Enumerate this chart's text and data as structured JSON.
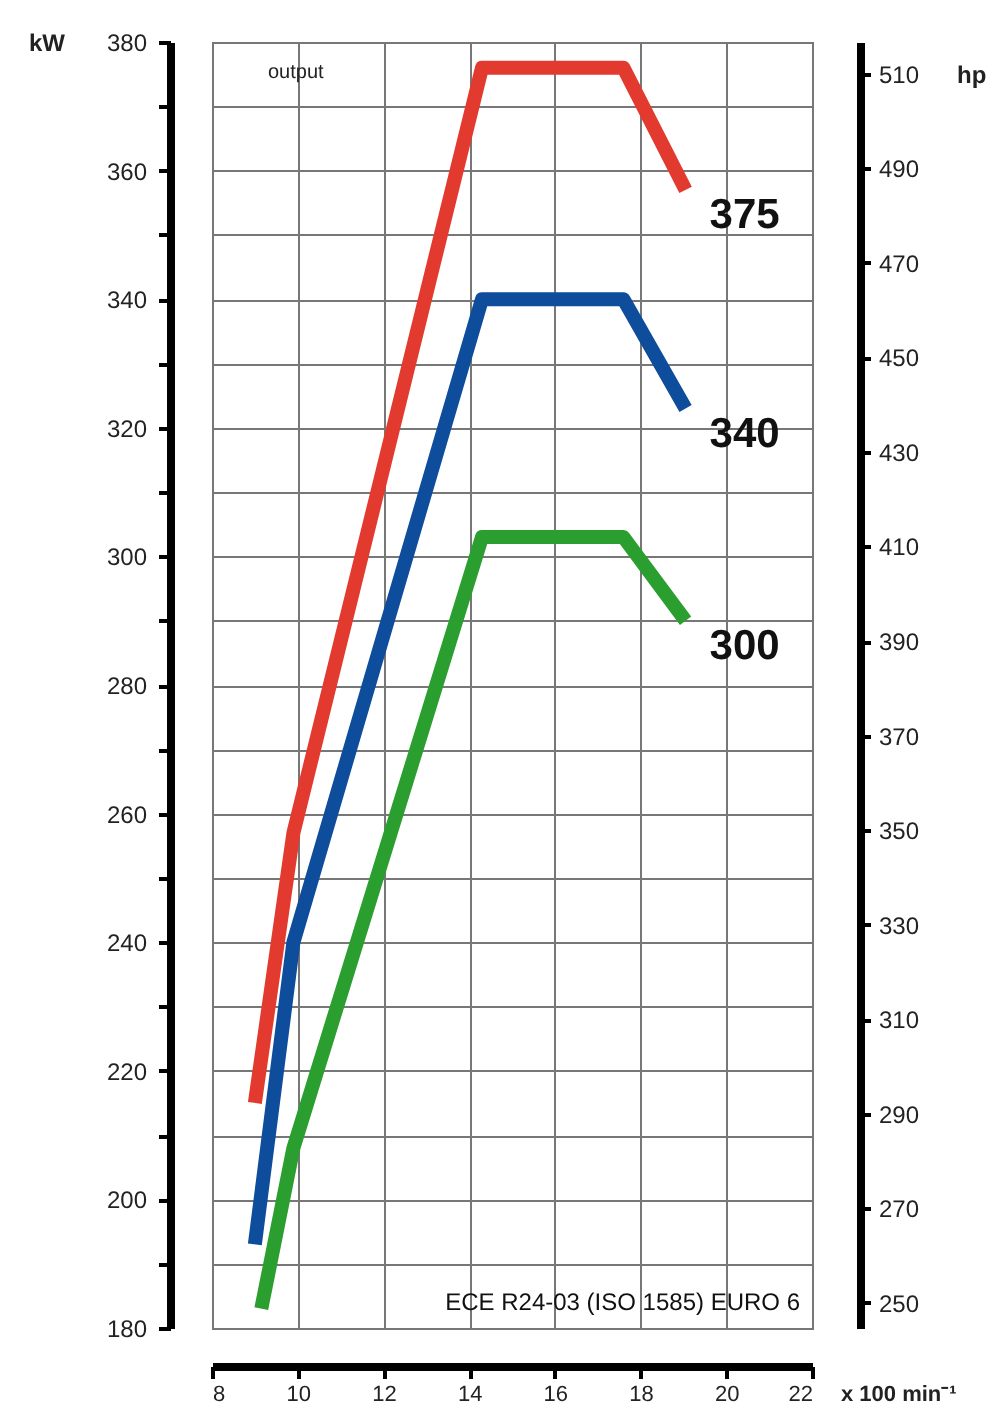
{
  "chart_data": {
    "type": "line",
    "title": "output",
    "xlabel": "x 100 min⁻¹",
    "ylabel": "kW",
    "y2label": "hp",
    "annotations": [
      "ECE R24-03 (ISO 1585) EURO 6"
    ],
    "series": [
      {
        "name": "375",
        "color": "#e33a2f",
        "x": [
          9.0,
          9.9,
          14.3,
          17.6,
          19.05
        ],
        "values": [
          215,
          257,
          376,
          376,
          357
        ]
      },
      {
        "name": "340",
        "color": "#0e4c9c",
        "x": [
          9.0,
          9.9,
          14.3,
          17.6,
          19.05
        ],
        "values": [
          193,
          240,
          340,
          340,
          323
        ]
      },
      {
        "name": "300",
        "color": "#2a9e2e",
        "x": [
          9.15,
          9.9,
          14.3,
          17.6,
          19.05
        ],
        "values": [
          183,
          208,
          303,
          303,
          290
        ]
      }
    ],
    "xlim": [
      8,
      22
    ],
    "xticks": [
      8,
      10,
      12,
      14,
      16,
      18,
      20,
      22
    ],
    "ylim": [
      180,
      380
    ],
    "yticks": [
      180,
      {
        "value": 190,
        "label": null
      },
      200,
      {
        "value": 210,
        "label": null
      },
      220,
      {
        "value": 230,
        "label": null
      },
      240,
      {
        "value": 250,
        "label": null
      },
      260,
      {
        "value": 270,
        "label": null
      },
      280,
      {
        "value": 290,
        "label": null
      },
      300,
      {
        "value": 310,
        "label": null
      },
      320,
      {
        "value": 330,
        "label": null
      },
      340,
      {
        "value": 350,
        "label": null
      },
      360,
      {
        "value": 370,
        "label": null
      },
      380
    ],
    "y2lim": [
      244.7,
      516.7
    ],
    "y2ticks": [
      250,
      270,
      290,
      310,
      330,
      350,
      370,
      390,
      410,
      430,
      450,
      470,
      490,
      510
    ],
    "grid": true,
    "marker": "none",
    "line_style": "solid"
  }
}
